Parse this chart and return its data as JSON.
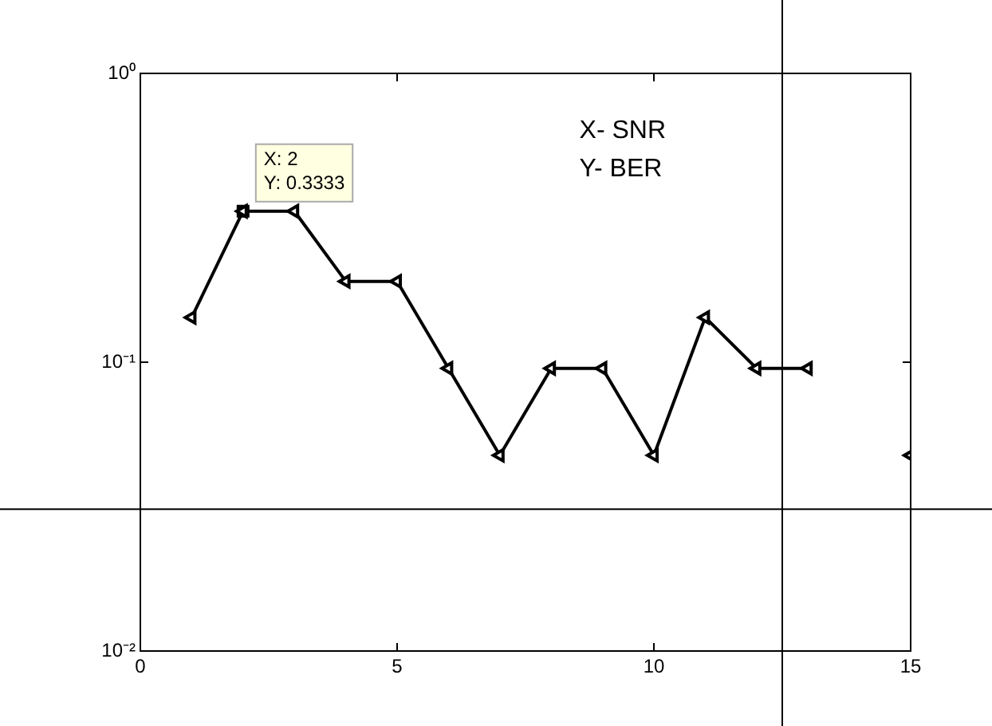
{
  "chart_data": {
    "type": "line",
    "x": [
      1,
      2,
      3,
      4,
      5,
      6,
      7,
      8,
      9,
      10,
      11,
      12,
      13,
      14,
      15
    ],
    "series": [
      {
        "color": "#000000",
        "values": [
          0.1429,
          0.3333,
          0.3333,
          0.1905,
          0.1905,
          0.0952,
          0.0476,
          0.0952,
          0.0952,
          0.0476,
          0.1429,
          0.0952,
          0.0952,
          null,
          0.0476
        ]
      }
    ],
    "xlim": [
      0,
      15
    ],
    "xticks": [
      0,
      5,
      10,
      15
    ],
    "ylim": [
      0.01,
      1
    ],
    "yticks": [
      {
        "value": 0.01,
        "label": "10⁻²"
      },
      {
        "value": 0.1,
        "label": "10⁻¹"
      },
      {
        "value": 1,
        "label": "10⁰"
      }
    ],
    "log": "y",
    "grid": false,
    "legend": false,
    "marker": "triangle",
    "line_style": "solid",
    "ref_lines": [
      {
        "axis": "y",
        "value": 0.031,
        "color": "#000000"
      },
      {
        "axis": "x",
        "value": 12.5,
        "color": "#000000"
      }
    ],
    "annotations": [
      {
        "text": "X: 2\nY: 0.3333",
        "x": 2,
        "y": 0.3333
      },
      "X- SNR",
      "Y- BER"
    ]
  }
}
